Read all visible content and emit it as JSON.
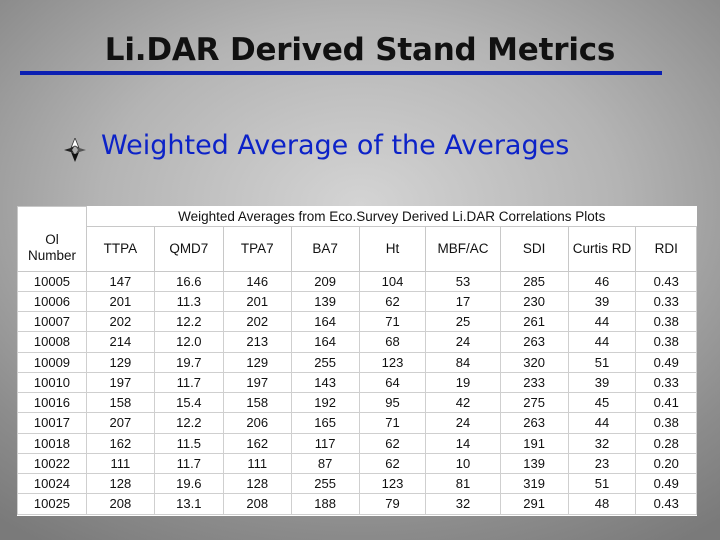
{
  "slide": {
    "title": "Li.DAR Derived Stand Metrics",
    "bullet": "Weighted Average of the Averages",
    "accent_color": "#0b1fb2",
    "bullet_icon": "four-point-arrow-bullet-icon"
  },
  "table": {
    "caption": "Weighted Averages from Eco.Survey Derived Li.DAR Correlations Plots",
    "first_header_line1": "Ol",
    "first_header_line2": "Number",
    "headers": [
      "TTPA",
      "QMD7",
      "TPA7",
      "BA7",
      "Ht",
      "MBF/AC",
      "SDI",
      "Curtis RD",
      "RDI"
    ],
    "rows": [
      [
        "10005",
        "147",
        "16.6",
        "146",
        "209",
        "104",
        "53",
        "285",
        "46",
        "0.43"
      ],
      [
        "10006",
        "201",
        "11.3",
        "201",
        "139",
        "62",
        "17",
        "230",
        "39",
        "0.33"
      ],
      [
        "10007",
        "202",
        "12.2",
        "202",
        "164",
        "71",
        "25",
        "261",
        "44",
        "0.38"
      ],
      [
        "10008",
        "214",
        "12.0",
        "213",
        "164",
        "68",
        "24",
        "263",
        "44",
        "0.38"
      ],
      [
        "10009",
        "129",
        "19.7",
        "129",
        "255",
        "123",
        "84",
        "320",
        "51",
        "0.49"
      ],
      [
        "10010",
        "197",
        "11.7",
        "197",
        "143",
        "64",
        "19",
        "233",
        "39",
        "0.33"
      ],
      [
        "10016",
        "158",
        "15.4",
        "158",
        "192",
        "95",
        "42",
        "275",
        "45",
        "0.41"
      ],
      [
        "10017",
        "207",
        "12.2",
        "206",
        "165",
        "71",
        "24",
        "263",
        "44",
        "0.38"
      ],
      [
        "10018",
        "162",
        "11.5",
        "162",
        "117",
        "62",
        "14",
        "191",
        "32",
        "0.28"
      ],
      [
        "10022",
        "111",
        "11.7",
        "111",
        "87",
        "62",
        "10",
        "139",
        "23",
        "0.20"
      ],
      [
        "10024",
        "128",
        "19.6",
        "128",
        "255",
        "123",
        "81",
        "319",
        "51",
        "0.49"
      ],
      [
        "10025",
        "208",
        "13.1",
        "208",
        "188",
        "79",
        "32",
        "291",
        "48",
        "0.43"
      ]
    ]
  }
}
